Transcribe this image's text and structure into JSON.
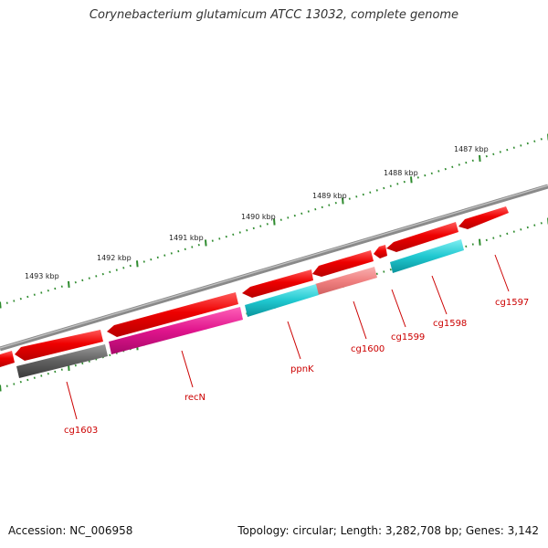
{
  "title": "Corynebacterium glutamicum ATCC 13032, complete genome",
  "footer": {
    "accession": "Accession: NC_006958",
    "topology": "Topology: circular; Length: 3,282,708 bp; Genes: 3,142"
  },
  "colors": {
    "backbone": "#8a8a8a",
    "ruler_ticks": "#2e8b2e",
    "gene_label": "#cc0000",
    "gene_red": "#ee0000",
    "gene_pink": "#f08080",
    "gene_magenta": "#e0148c",
    "gene_cyan": "#20c8d0",
    "gene_gray": "#606060"
  },
  "scale_labels": [
    "1487 kbp",
    "1488 kbp",
    "1489 kbp",
    "1490 kbp",
    "1491 kbp",
    "1492 kbp",
    "1493 kbp"
  ],
  "gene_labels": [
    "cg1597",
    "cg1598",
    "cg1599",
    "cg1600",
    "ppnK",
    "recN",
    "cg1603"
  ]
}
